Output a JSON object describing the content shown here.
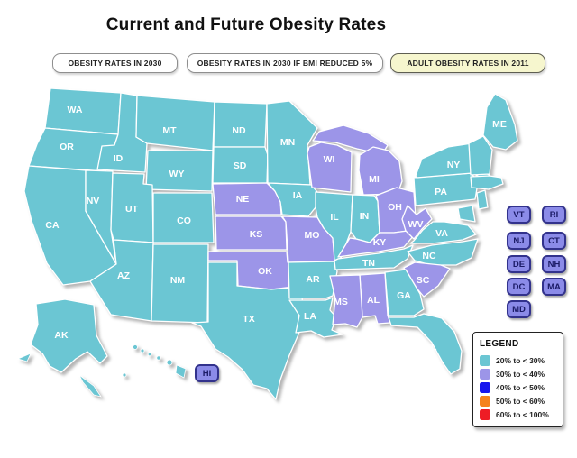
{
  "title": "Current and Future Obesity Rates",
  "tabs": [
    {
      "label": "OBESITY RATES IN 2030",
      "active": false
    },
    {
      "label": "OBESITY RATES IN 2030 IF BMI REDUCED 5%",
      "active": false
    },
    {
      "label": "ADULT OBESITY RATES IN 2011",
      "active": true
    }
  ],
  "legend": {
    "title": "LEGEND",
    "entries": [
      {
        "key": "20-30",
        "range": "20% to < 30%",
        "color": "#6BC6D3"
      },
      {
        "key": "30-40",
        "range": "30% to < 40%",
        "color": "#9C95E8"
      },
      {
        "key": "40-50",
        "range": "40% to < 50%",
        "color": "#1616EE"
      },
      {
        "key": "50-60",
        "range": "50% to < 60%",
        "color": "#F5831F"
      },
      {
        "key": "60-100",
        "range": "60% to < 100%",
        "color": "#EE1C25"
      }
    ]
  },
  "map": {
    "states": {
      "WA": "20-30",
      "OR": "20-30",
      "CA": "20-30",
      "NV": "20-30",
      "ID": "20-30",
      "MT": "20-30",
      "WY": "20-30",
      "UT": "20-30",
      "AZ": "20-30",
      "CO": "20-30",
      "NM": "20-30",
      "ND": "20-30",
      "SD": "20-30",
      "NE": "30-40",
      "KS": "30-40",
      "OK": "30-40",
      "TX": "20-30",
      "MN": "20-30",
      "IA": "20-30",
      "MO": "30-40",
      "AR": "20-30",
      "LA": "20-30",
      "WI": "30-40",
      "MI": "30-40",
      "IL": "20-30",
      "IN": "20-30",
      "OH": "30-40",
      "KY": "30-40",
      "TN": "20-30",
      "MS": "30-40",
      "AL": "30-40",
      "GA": "20-30",
      "FL": "20-30",
      "SC": "30-40",
      "NC": "20-30",
      "VA": "20-30",
      "WV": "30-40",
      "PA": "20-30",
      "NY": "20-30",
      "ME": "20-30",
      "VT": "20-30",
      "NH": "20-30",
      "MA": "20-30",
      "CT": "20-30",
      "RI": "20-30",
      "NJ": "20-30",
      "DE": "20-30",
      "MD": "20-30",
      "DC": "20-30",
      "AK": "20-30",
      "HI": "20-30"
    },
    "hawaii_box_label": "HI"
  },
  "small_state_boxes": [
    [
      "VT",
      "RI"
    ],
    [
      "NJ",
      "CT"
    ],
    [
      "DE",
      "NH"
    ],
    [
      "DC",
      "MA"
    ],
    [
      "MD"
    ]
  ],
  "colors": {
    "box_fill": "#8B8BE8",
    "box_border": "#32328C",
    "box_text": "#1B1B66",
    "active_tab_bg": "#F6F6CE"
  }
}
